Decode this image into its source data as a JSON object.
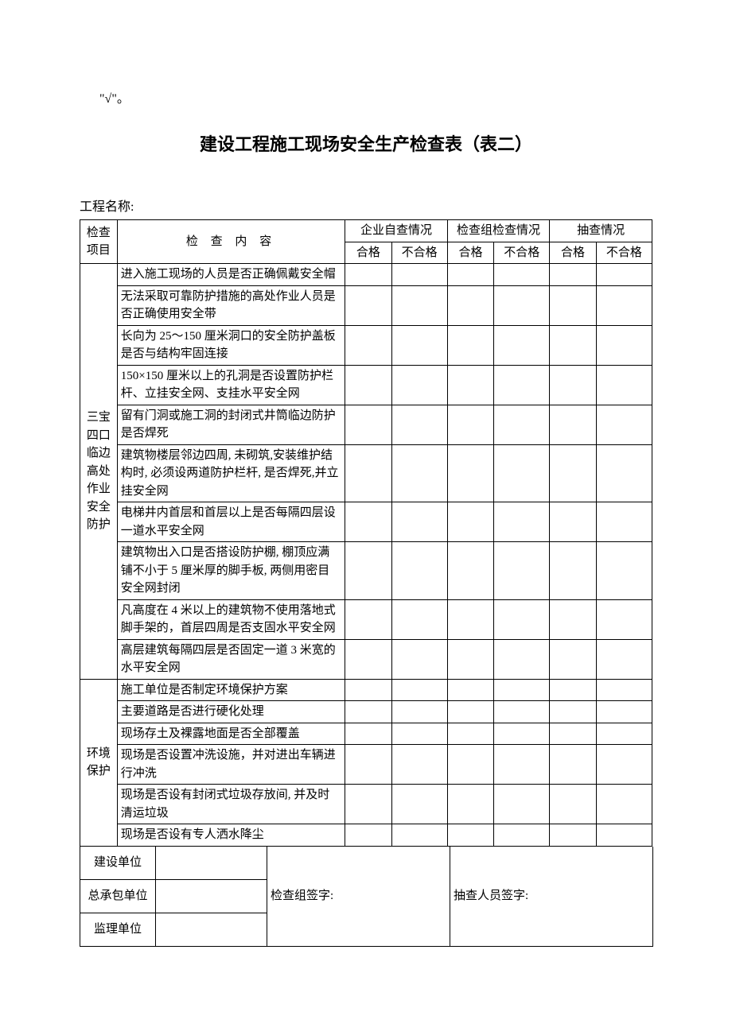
{
  "fragment": "\"√\"。",
  "title": "建设工程施工现场安全生产检查表（表二）",
  "subtitle": "工程名称:",
  "headers": {
    "cat": "检查项目",
    "content": "检 查 内 容",
    "g1": "企业自查情况",
    "g2": "检查组检查情况",
    "g3": "抽查情况",
    "pass": "合格",
    "fail": "不合格"
  },
  "sections": [
    {
      "cat": "三宝四口临边高处作业安全防护",
      "items": [
        "进入施工现场的人员是否正确佩戴安全帽",
        "无法采取可靠防护措施的高处作业人员是否正确使用安全带",
        "长向为 25～150 厘米洞口的安全防护盖板是否与结构牢固连接",
        "150×150 厘米以上的孔洞是否设置防护栏杆、立挂安全网、支挂水平安全网",
        "留有门洞或施工洞的封闭式井筒临边防护是否焊死",
        "建筑物楼层邻边四周, 未砌筑,安装维护结构时, 必须设两道防护栏杆, 是否焊死,并立挂安全网",
        "电梯井内首层和首层以上是否每隔四层设一道水平安全网",
        "建筑物出入口是否搭设防护棚, 棚顶应满铺不小于 5 厘米厚的脚手板, 两侧用密目安全网封闭",
        "凡高度在 4 米以上的建筑物不使用落地式脚手架的，首层四周是否支固水平安全网",
        "高层建筑每隔四层是否固定一道 3 米宽的水平安全网"
      ]
    },
    {
      "cat": "环境保护",
      "items": [
        "施工单位是否制定环境保护方案",
        "主要道路是否进行硬化处理",
        "现场存土及裸露地面是否全部覆盖",
        "现场是否设置冲洗设施，并对进出车辆进行冲洗",
        "现场是否设有封闭式垃圾存放间, 并及时清运垃圾",
        "现场是否设有专人洒水降尘"
      ]
    }
  ],
  "signature": {
    "row1": "建设单位",
    "row2": "总承包单位",
    "row3": "监理单位",
    "checkgroup": "检查组签字:",
    "spotcheck": "抽查人员签字:"
  },
  "styling": {
    "page_bg": "#ffffff",
    "text_color": "#000000",
    "border_color": "#000000",
    "title_fontsize": 22,
    "body_fontsize": 15,
    "font_family": "SimSun"
  }
}
